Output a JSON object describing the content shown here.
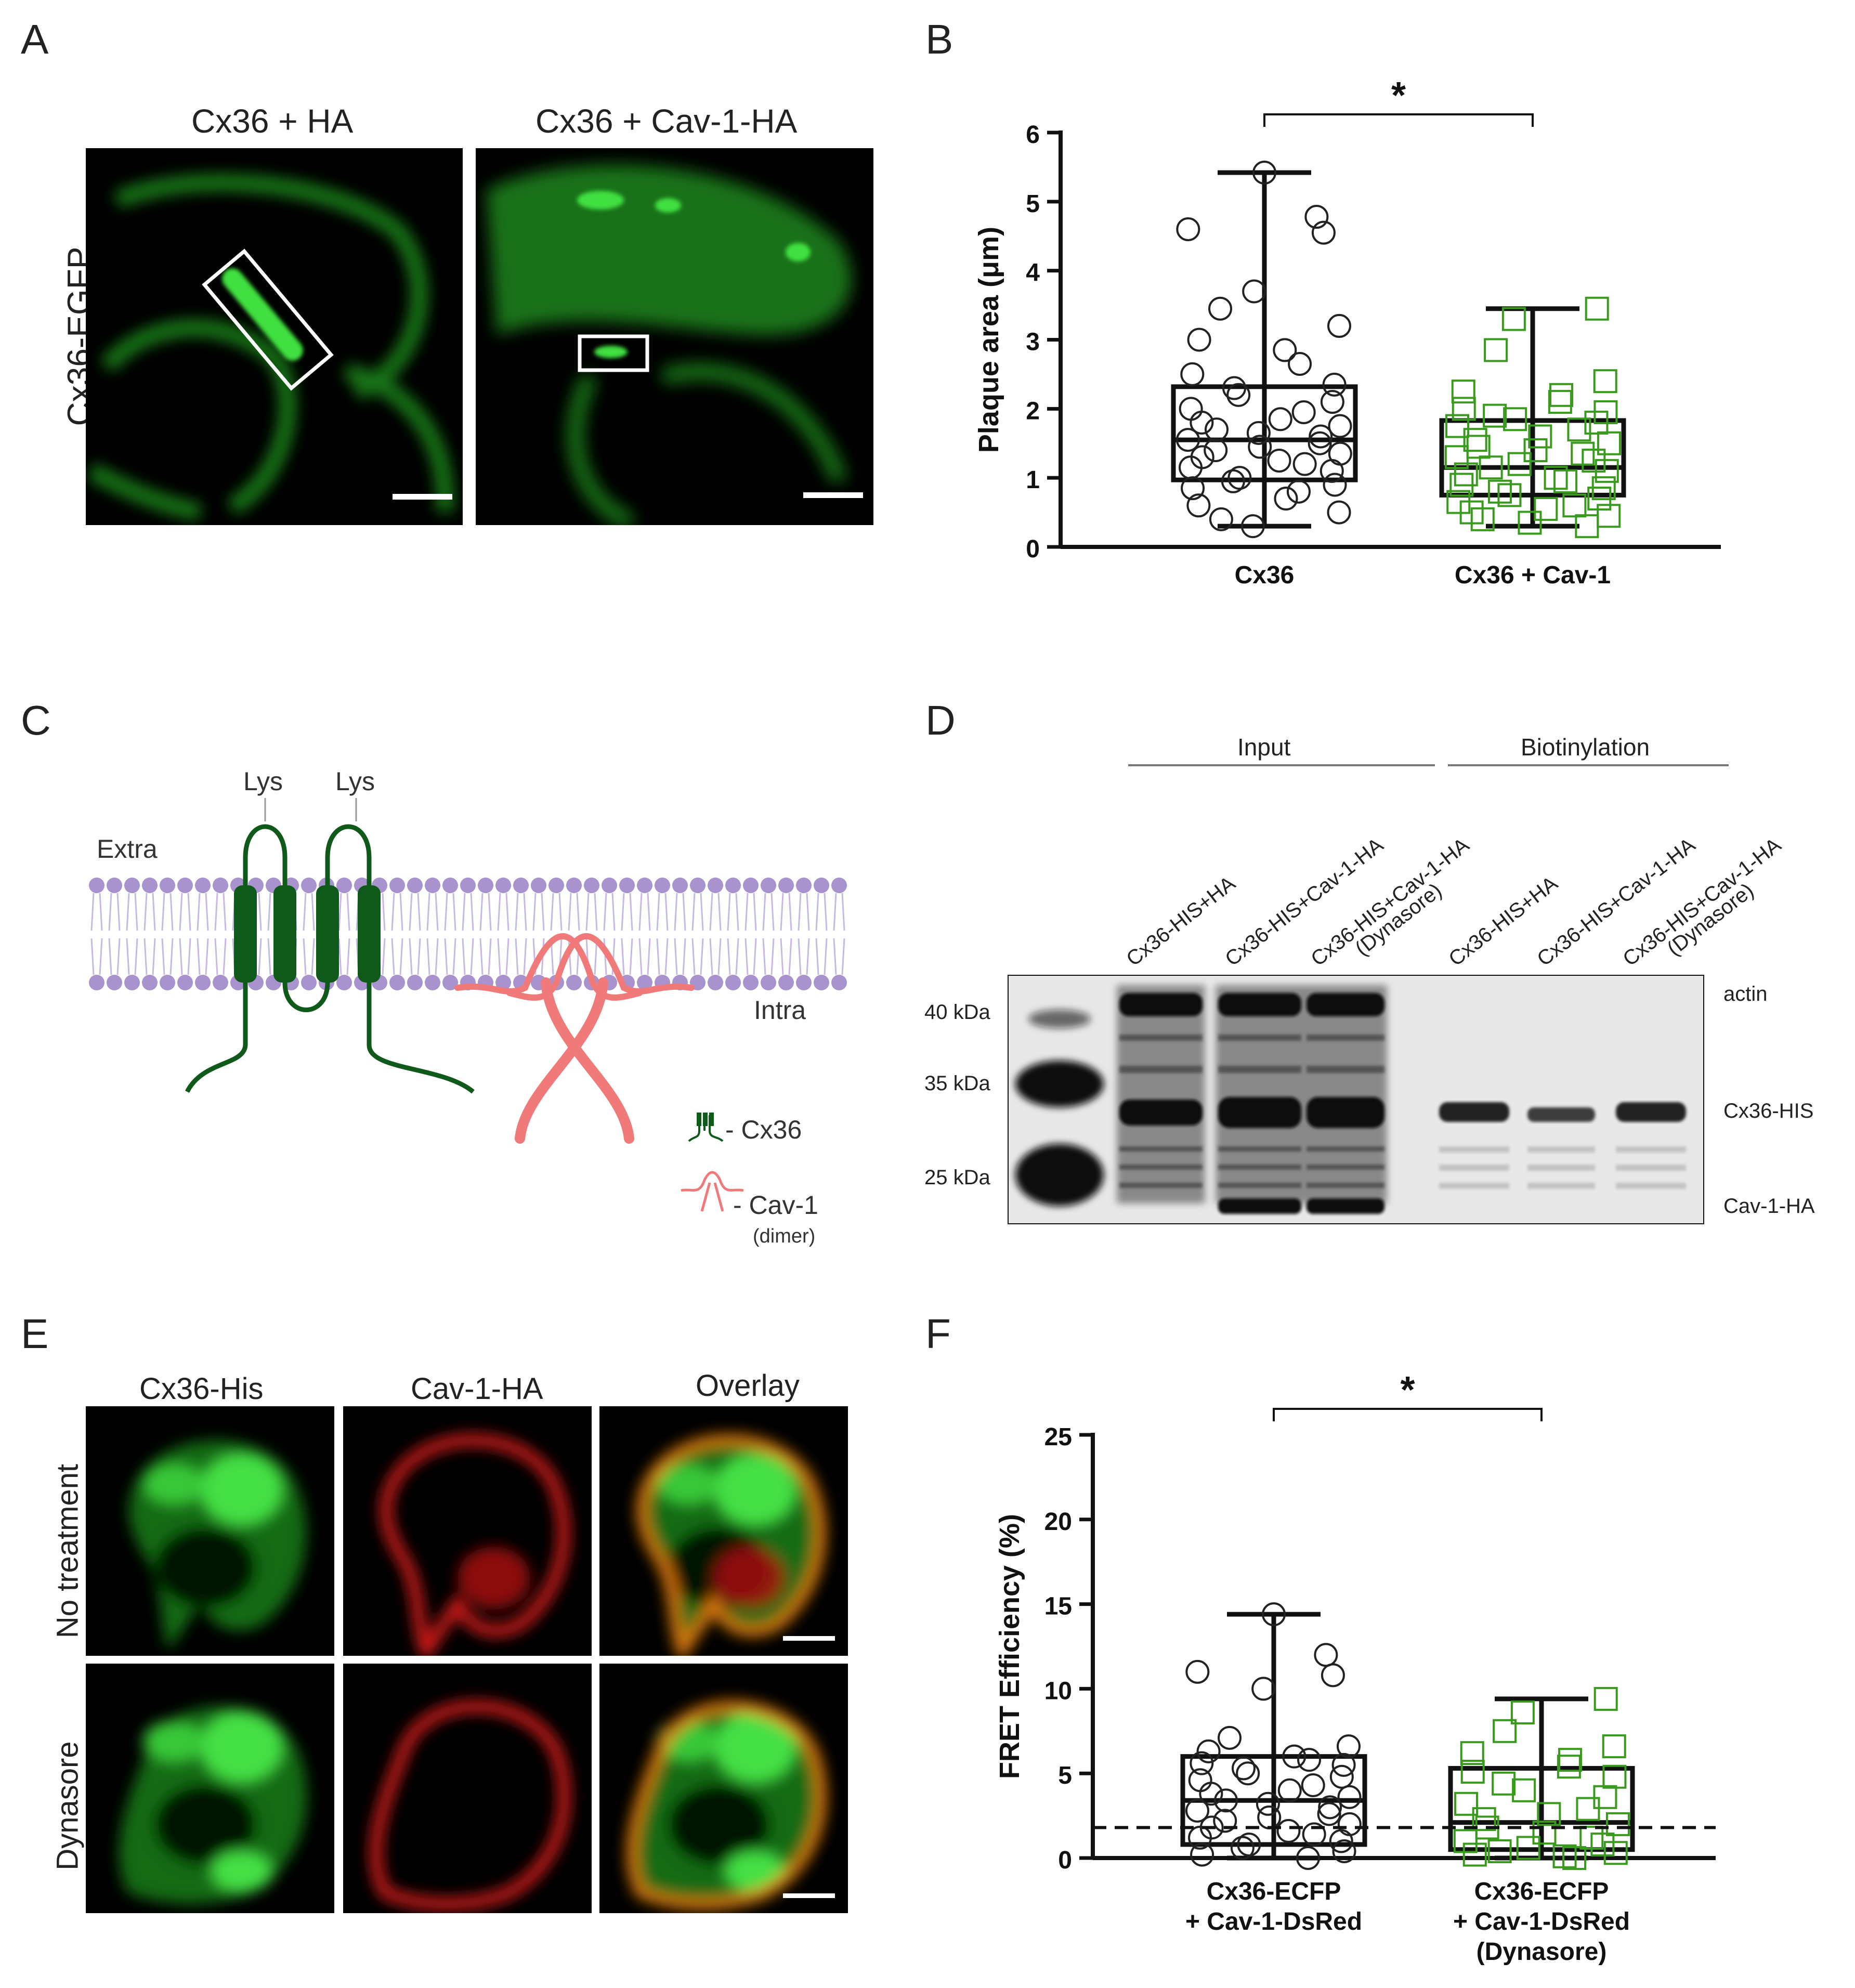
{
  "panels": {
    "A": {
      "letter": "A",
      "row_label": "Cx36-EGFP",
      "col_labels": [
        "Cx36 + HA",
        "Cx36 + Cav-1-HA"
      ]
    },
    "B": {
      "letter": "B",
      "significance": "*",
      "chart_data": {
        "type": "box",
        "ylabel": "Plaque area (μm)",
        "ylim": [
          0,
          6
        ],
        "yticks": [
          0,
          1,
          2,
          3,
          4,
          5,
          6
        ],
        "categories": [
          "Cx36",
          "Cx36 + Cav-1"
        ],
        "boxes": [
          {
            "min": 0.3,
            "q1": 0.97,
            "median": 1.55,
            "q3": 2.32,
            "max": 5.42
          },
          {
            "min": 0.3,
            "q1": 0.75,
            "median": 1.15,
            "q3": 1.83,
            "max": 3.45
          }
        ],
        "points": [
          [
            5.42,
            4.78,
            4.6,
            4.55,
            3.7,
            3.45,
            3.2,
            3.0,
            2.85,
            2.65,
            2.5,
            2.35,
            2.3,
            2.2,
            2.1,
            2.0,
            1.95,
            1.85,
            1.8,
            1.75,
            1.7,
            1.65,
            1.6,
            1.55,
            1.5,
            1.45,
            1.4,
            1.35,
            1.3,
            1.25,
            1.2,
            1.15,
            1.1,
            1.0,
            0.95,
            0.9,
            0.85,
            0.8,
            0.7,
            0.6,
            0.5,
            0.4,
            0.3
          ],
          [
            3.45,
            3.3,
            2.85,
            2.4,
            2.25,
            2.2,
            2.1,
            2.0,
            1.95,
            1.9,
            1.85,
            1.8,
            1.75,
            1.7,
            1.6,
            1.55,
            1.5,
            1.45,
            1.4,
            1.35,
            1.3,
            1.25,
            1.2,
            1.15,
            1.1,
            1.05,
            1.0,
            0.95,
            0.9,
            0.85,
            0.8,
            0.75,
            0.7,
            0.65,
            0.6,
            0.55,
            0.5,
            0.45,
            0.4,
            0.35,
            0.3
          ]
        ],
        "colors": [
          "#222222",
          "#3a9a1e"
        ]
      }
    },
    "C": {
      "letter": "C",
      "lys_labels": [
        "Lys",
        "Lys"
      ],
      "extra_label": "Extra",
      "intra_label": "Intra",
      "legend": [
        {
          "label": "- Cx36",
          "color": "#0f5a1a"
        },
        {
          "label": "- Cav-1",
          "sub": "(dimer)",
          "color": "#f07a7a"
        }
      ]
    },
    "D": {
      "letter": "D",
      "group_labels": [
        "Input",
        "Biotinylation"
      ],
      "lanes": [
        "Cx36-HIS+HA",
        "Cx36-HIS+Cav-1-HA",
        "Cx36-HIS+Cav-1-HA",
        "Cx36-HIS+HA",
        "Cx36-HIS+Cav-1-HA",
        "Cx36-HIS+Cav-1-HA"
      ],
      "lane_sub": [
        "",
        "",
        "(Dynasore)",
        "",
        "",
        "(Dynasore)"
      ],
      "markers": [
        "40 kDa",
        "35 kDa",
        "25 kDa"
      ],
      "band_labels": [
        "actin",
        "Cx36-HIS",
        "Cav-1-HA"
      ]
    },
    "E": {
      "letter": "E",
      "col_labels": [
        "Cx36-His",
        "Cav-1-HA",
        "Overlay"
      ],
      "row_labels": [
        "No treatment",
        "Dynasore"
      ]
    },
    "F": {
      "letter": "F",
      "significance": "*",
      "chart_data": {
        "type": "box",
        "ylabel": "FRET Efficiency (%)",
        "ylim": [
          0,
          25
        ],
        "yticks": [
          0,
          5,
          10,
          15,
          20,
          25
        ],
        "categories": [
          "Cx36-ECFP\n+ Cav-1-DsRed",
          "Cx36-ECFP\n+ Cav-1-DsRed\n(Dynasore)"
        ],
        "boxes": [
          {
            "min": 0.0,
            "q1": 0.8,
            "median": 3.4,
            "q3": 6.0,
            "max": 14.4
          },
          {
            "min": 0.0,
            "q1": 0.5,
            "median": 2.1,
            "q3": 5.3,
            "max": 9.4
          }
        ],
        "threshold": 1.8,
        "points": [
          [
            14.4,
            12.0,
            11.0,
            10.8,
            10.0,
            7.1,
            6.6,
            6.3,
            6.0,
            5.8,
            5.6,
            5.5,
            5.3,
            5.0,
            4.8,
            4.6,
            4.3,
            4.0,
            3.8,
            3.6,
            3.4,
            3.2,
            3.0,
            2.8,
            2.6,
            2.4,
            2.2,
            2.0,
            1.8,
            1.6,
            1.4,
            1.2,
            1.0,
            0.8,
            0.6,
            0.4,
            0.2,
            0.0
          ],
          [
            9.4,
            8.6,
            7.5,
            6.6,
            6.2,
            5.8,
            5.4,
            5.1,
            4.8,
            4.4,
            4.0,
            3.6,
            3.2,
            2.9,
            2.6,
            2.3,
            2.0,
            1.8,
            1.5,
            1.2,
            1.0,
            0.8,
            0.6,
            0.4,
            0.3,
            0.2,
            0.1,
            0.0
          ]
        ],
        "colors": [
          "#222222",
          "#3a9a1e"
        ]
      }
    }
  }
}
